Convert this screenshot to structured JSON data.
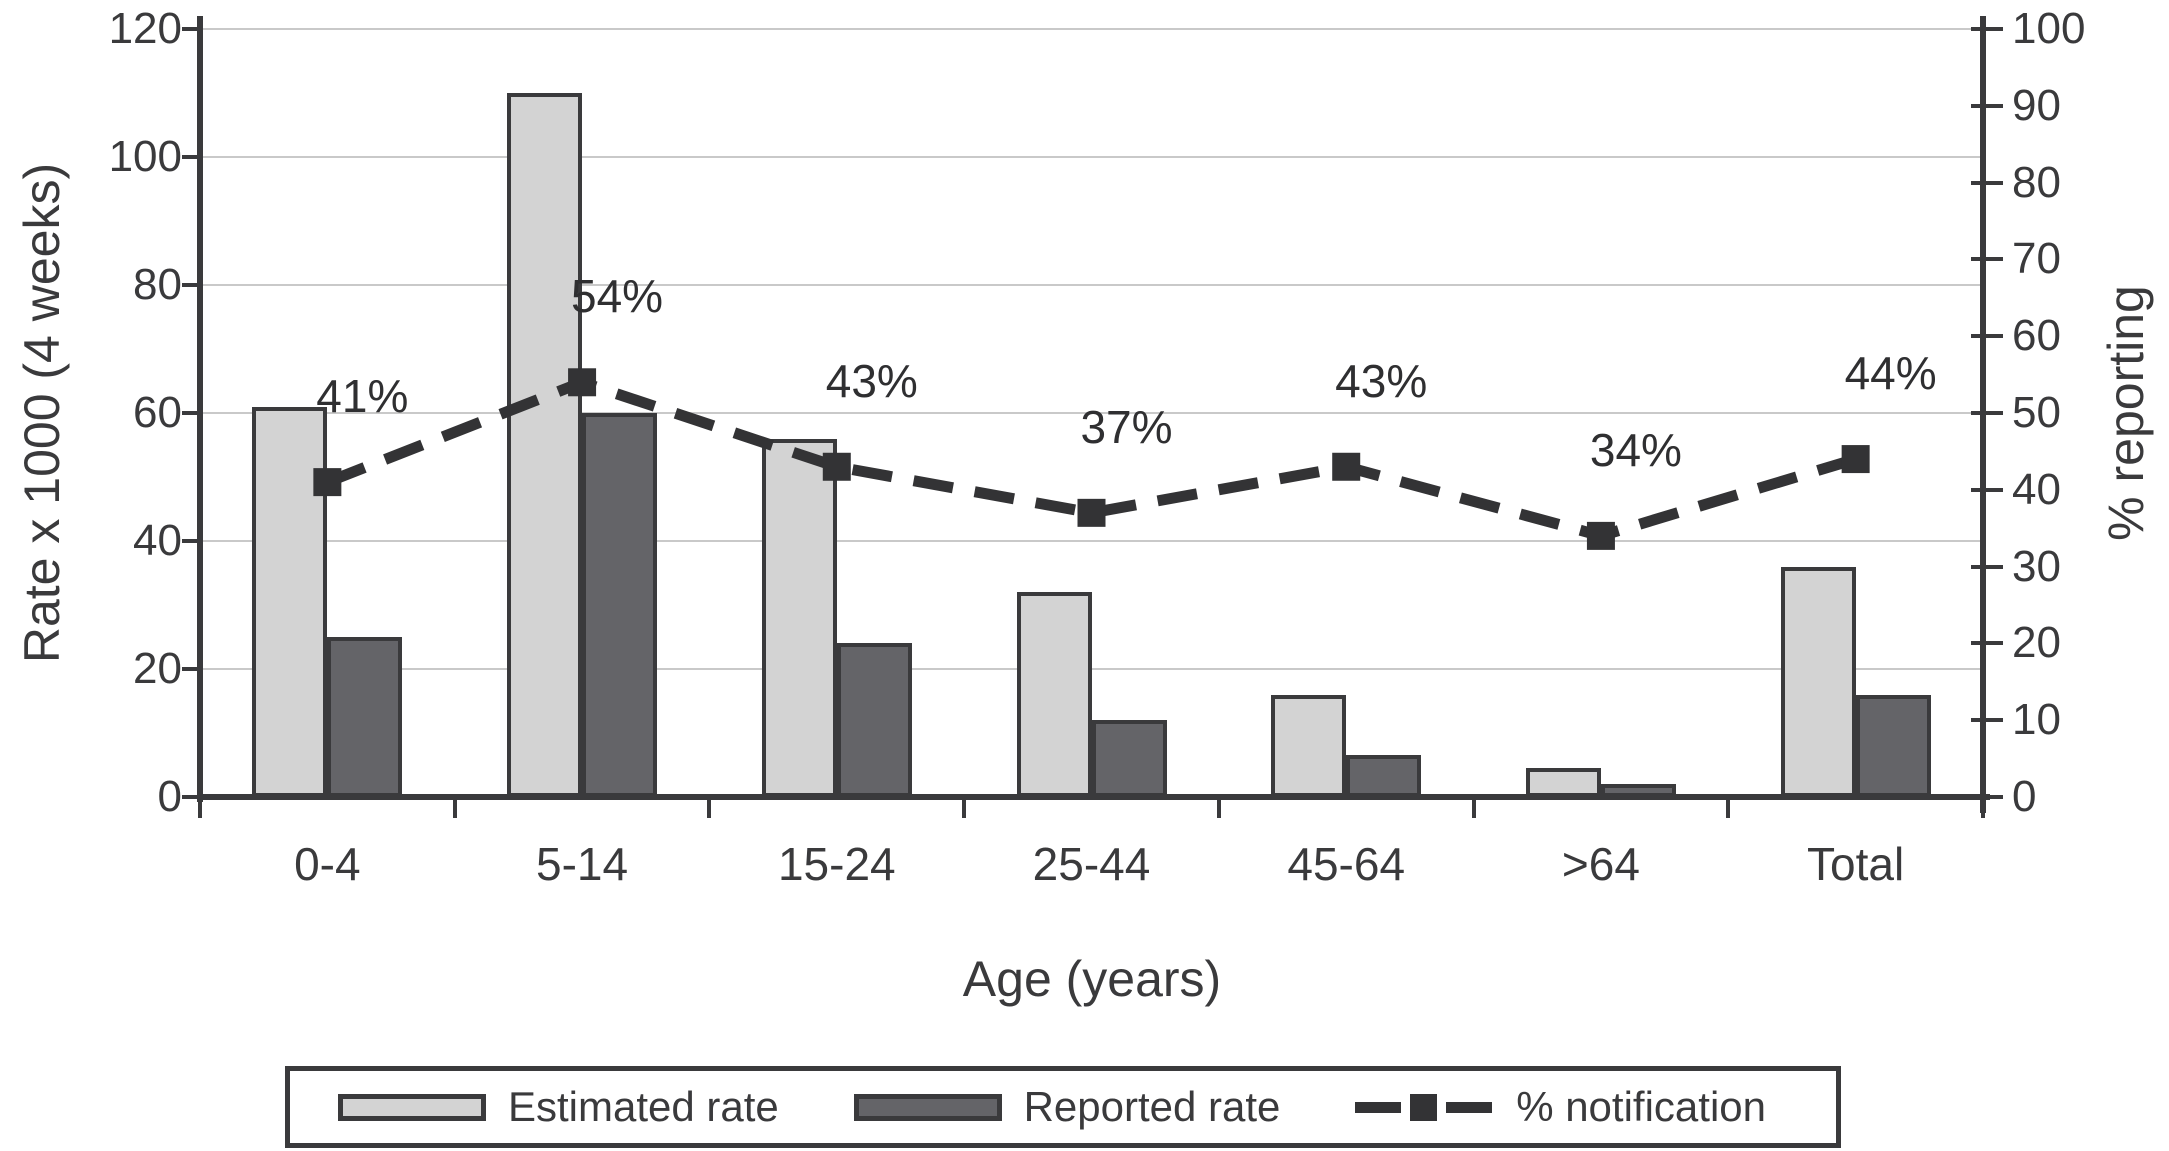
{
  "chart_data": {
    "type": "bar",
    "subtype": "combo-bar-line-dual-axis",
    "categories": [
      "0-4",
      "5-14",
      "15-24",
      "25-44",
      "45-64",
      ">64",
      "Total"
    ],
    "series": [
      {
        "name": "Estimated rate",
        "type": "bar",
        "axis": "left",
        "values": [
          61,
          110,
          56,
          32,
          16,
          4.5,
          36
        ],
        "color": "#d3d3d3"
      },
      {
        "name": "Reported rate",
        "type": "bar",
        "axis": "left",
        "values": [
          25,
          60,
          24,
          12,
          6.5,
          2,
          16
        ],
        "color": "#646468"
      },
      {
        "name": "% notification",
        "type": "line",
        "axis": "right",
        "values": [
          41,
          54,
          43,
          37,
          43,
          34,
          44
        ],
        "point_labels": [
          "41%",
          "54%",
          "43%",
          "37%",
          "43%",
          "34%",
          "44%"
        ],
        "color": "#333335",
        "style": "dashed",
        "marker": "square"
      }
    ],
    "left_axis": {
      "title": "Rate x 1000 (4 weeks)",
      "min": 0,
      "max": 120,
      "step": 20,
      "ticks": [
        "0",
        "20",
        "40",
        "60",
        "80",
        "100",
        "120"
      ]
    },
    "right_axis": {
      "title": "% reporting",
      "min": 0,
      "max": 100,
      "step": 10,
      "ticks": [
        "0",
        "10",
        "20",
        "30",
        "40",
        "50",
        "60",
        "70",
        "80",
        "90",
        "100"
      ]
    },
    "x_axis": {
      "title": "Age (years)"
    },
    "legend": {
      "position": "bottom",
      "entries": [
        "Estimated rate",
        "Reported rate",
        "% notification"
      ]
    },
    "grid": "horizontal gridlines every 20 left-axis units",
    "colors": {
      "grid": "#c9c9c9",
      "axis": "#3a3a3c",
      "background": "#ffffff"
    }
  }
}
